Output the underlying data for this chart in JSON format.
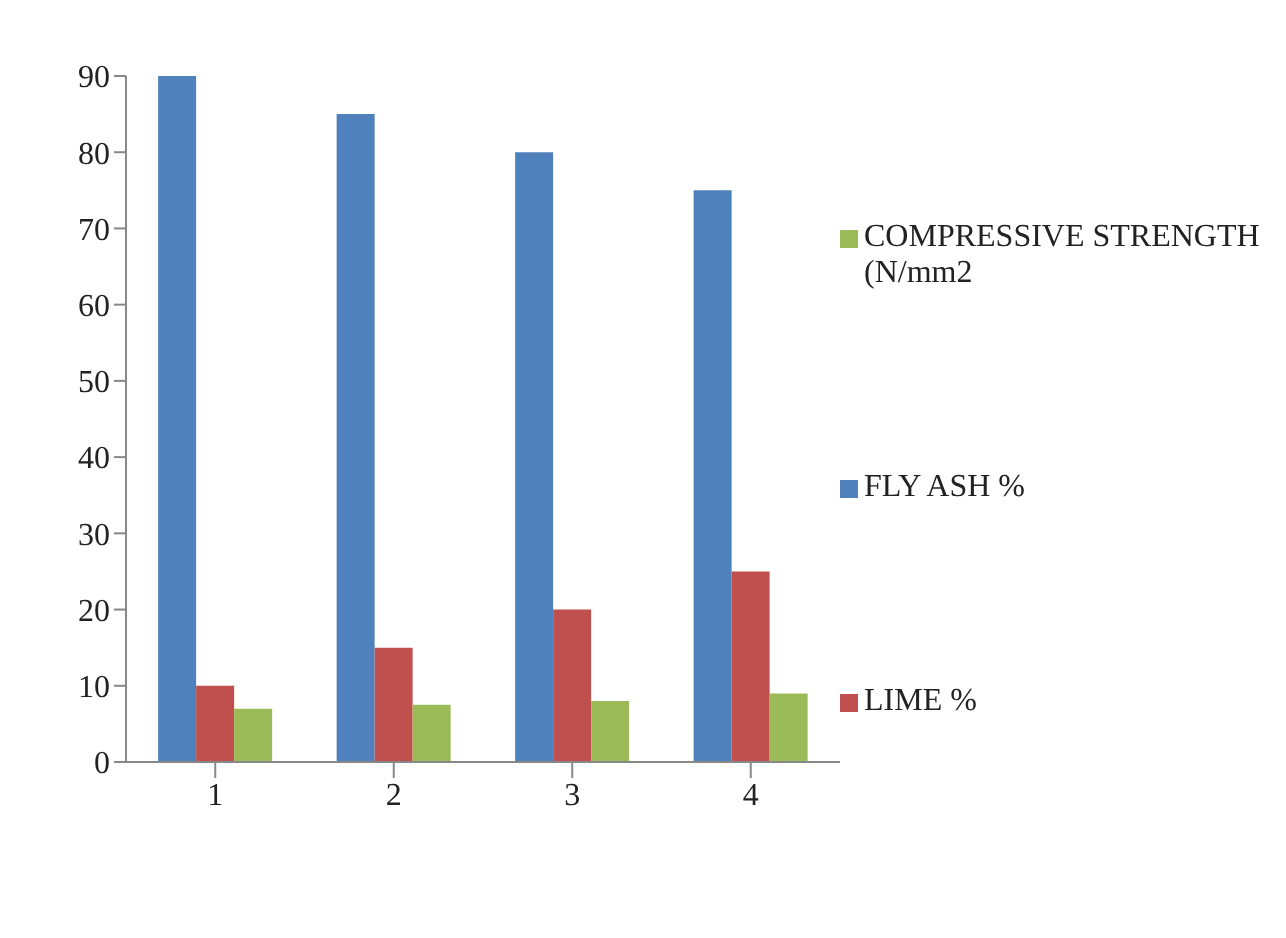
{
  "chart_data": {
    "type": "bar",
    "categories": [
      "1",
      "2",
      "3",
      "4"
    ],
    "series": [
      {
        "name": "FLY ASH %",
        "color": "#4f81bd",
        "values": [
          90,
          85,
          80,
          75
        ]
      },
      {
        "name": "LIME %",
        "color": "#c0504d",
        "values": [
          10,
          15,
          20,
          25
        ]
      },
      {
        "name": "COMPRESSIVE STRENGTH (N/mm2",
        "color": "#9bbb59",
        "values": [
          7,
          7.5,
          8,
          9
        ]
      }
    ],
    "ylim": [
      0,
      90
    ],
    "yticks": [
      0,
      10,
      20,
      30,
      40,
      50,
      60,
      70,
      80,
      90
    ],
    "grid": false,
    "legend": "right"
  }
}
